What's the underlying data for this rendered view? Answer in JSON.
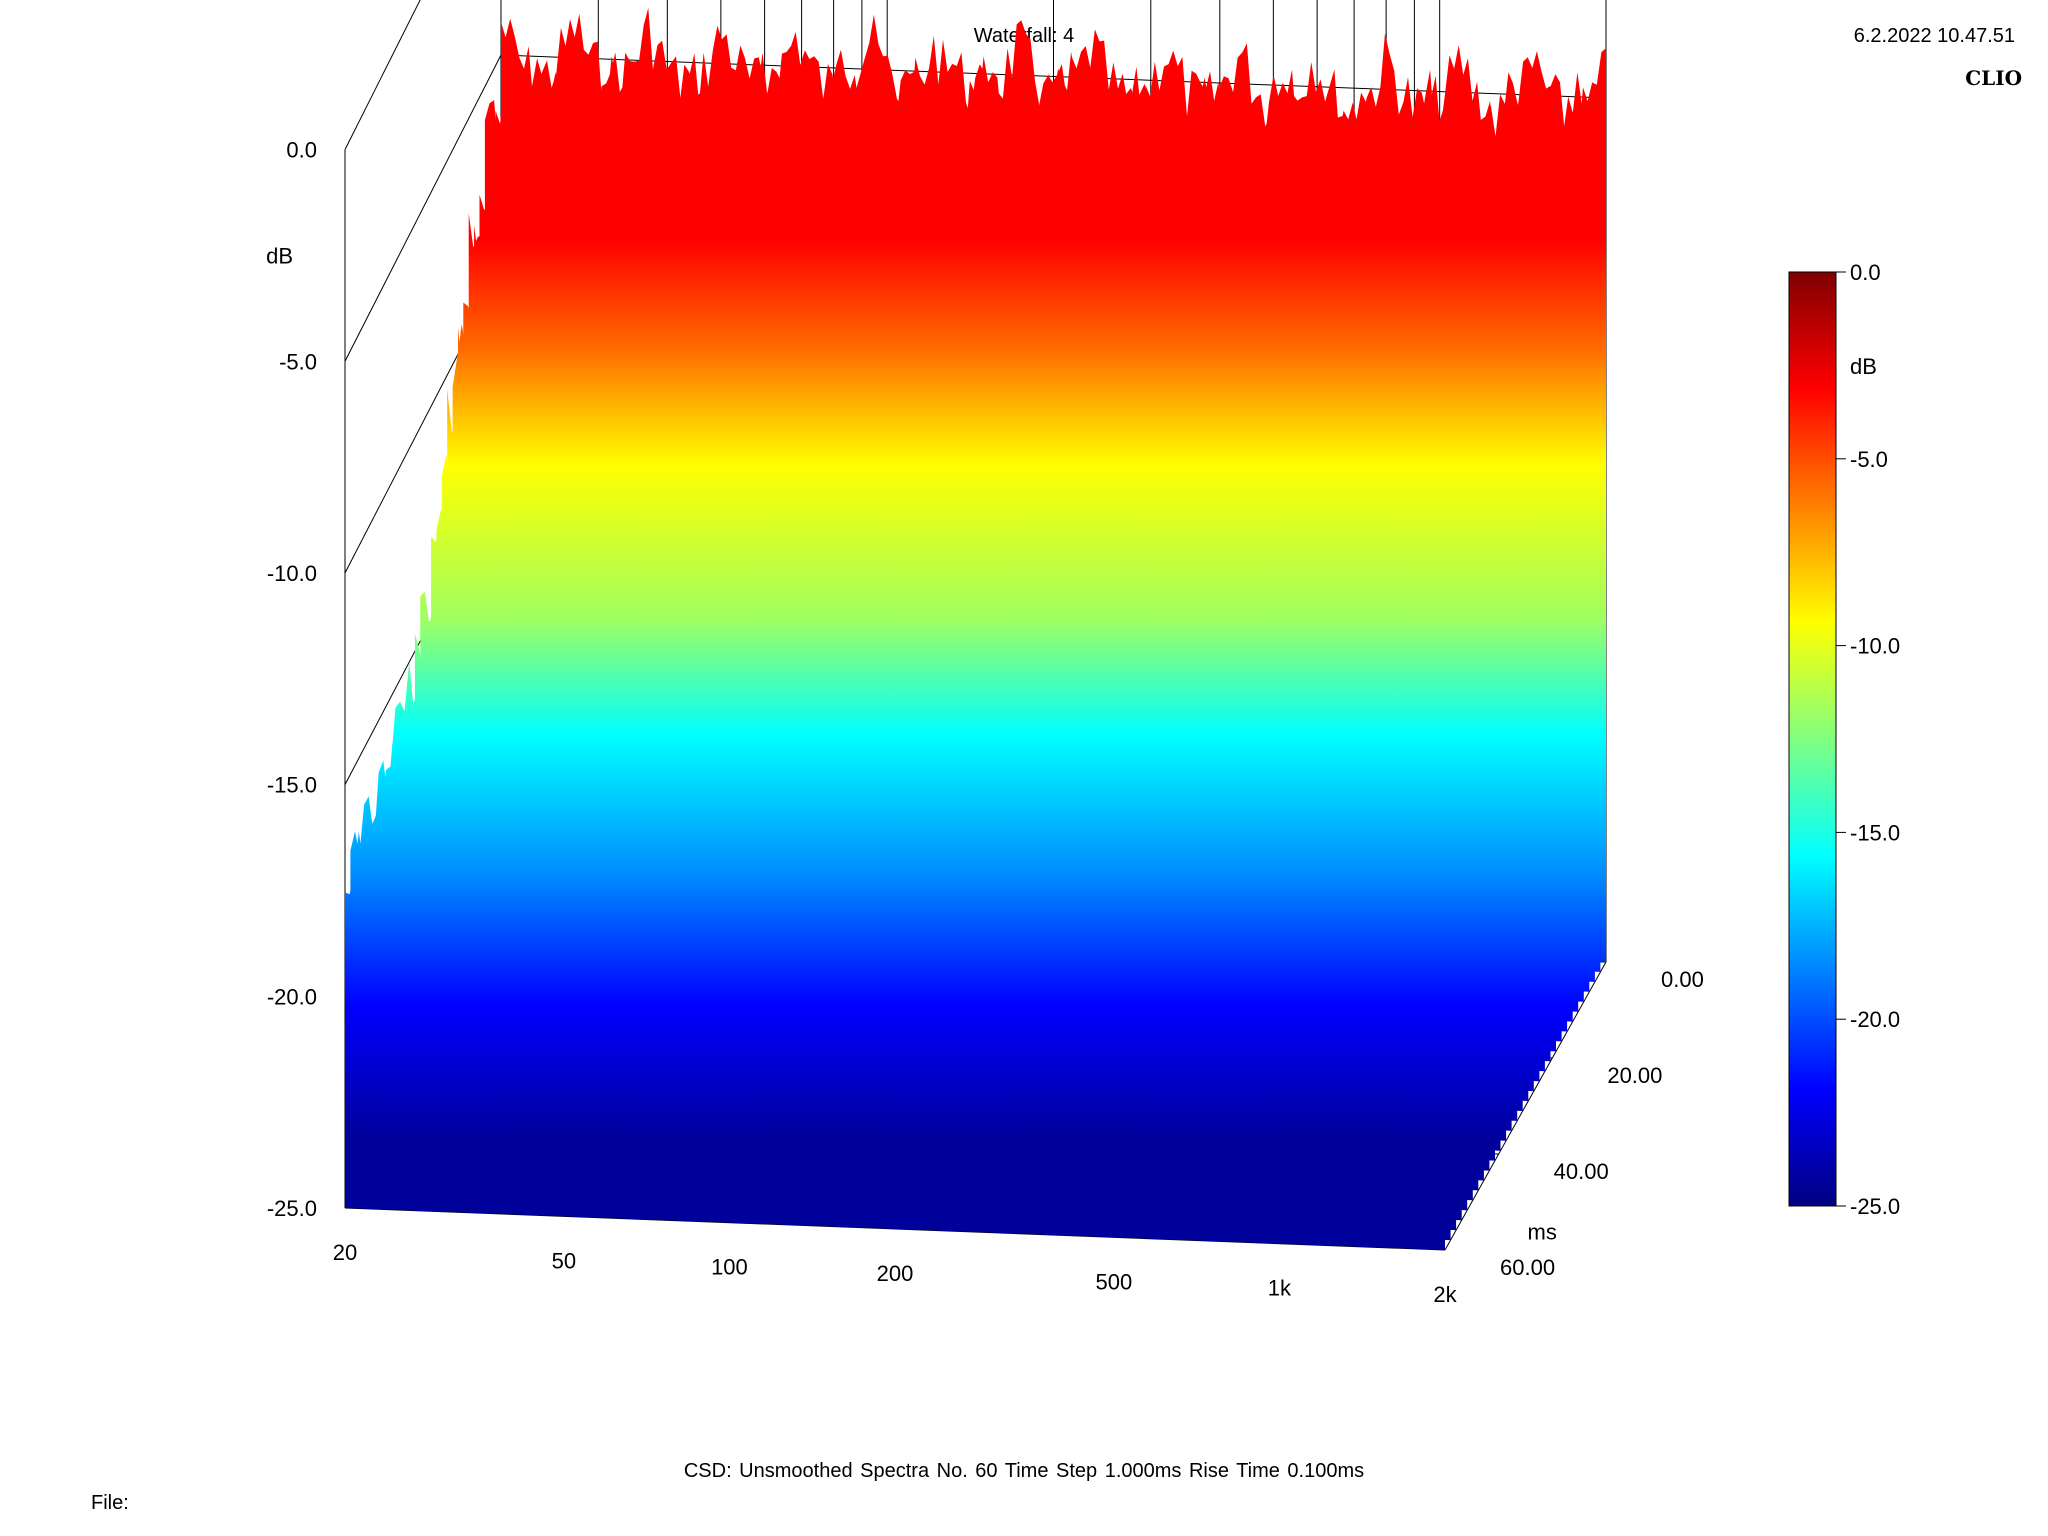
{
  "header": {
    "title": "Waterfall: 4",
    "timestamp": "6.2.2022 10.47.51",
    "brand": "CLIO"
  },
  "footer": {
    "info": "CSD:   Unsmoothed   Spectra No. 60   Time Step 1.000ms   Rise Time 0.100ms",
    "file_label": "File:"
  },
  "chart_data": {
    "type": "waterfall",
    "title": "Waterfall: 4",
    "x_axis": {
      "label": "",
      "scale": "log",
      "ticks": [
        "20",
        "50",
        "100",
        "200",
        "500",
        "1k",
        "2k"
      ],
      "range": [
        20,
        2000
      ]
    },
    "y_axis": {
      "label": "dB",
      "ticks": [
        "0.0",
        "-5.0",
        "-10.0",
        "-15.0",
        "-20.0",
        "-25.0"
      ],
      "range": [
        -25,
        0
      ]
    },
    "z_axis": {
      "label": "ms",
      "ticks": [
        "0.00",
        "20.00",
        "40.00",
        "60.00"
      ],
      "range": [
        0,
        60
      ]
    },
    "colorbar": {
      "label": "dB",
      "ticks": [
        "0.0",
        "-5.0",
        "-10.0",
        "-15.0",
        "-20.0",
        "-25.0"
      ],
      "range": [
        -25,
        0
      ]
    },
    "series_info": {
      "spectra_count": 60,
      "time_step_ms": 1.0,
      "rise_time_ms": 0.1,
      "smoothing": "Unsmoothed"
    },
    "colors": [
      "#7f0000",
      "#ff0000",
      "#ff8000",
      "#ffff00",
      "#80ff80",
      "#00ffff",
      "#0080ff",
      "#0000ff",
      "#00007f"
    ]
  }
}
